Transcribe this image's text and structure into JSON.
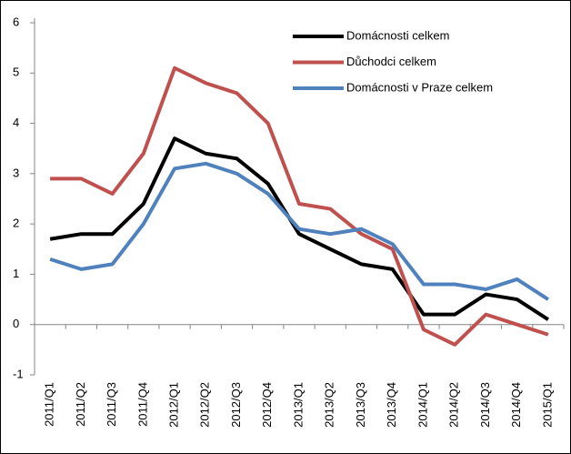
{
  "chart_data": {
    "type": "line",
    "categories": [
      "2011/Q1",
      "2011/Q2",
      "2011/Q3",
      "2011/Q4",
      "2012/Q1",
      "2012/Q2",
      "2012/Q3",
      "2012/Q4",
      "2013/Q1",
      "2013/Q2",
      "2013/Q3",
      "2013/Q4",
      "2014/Q1",
      "2014/Q2",
      "2014/Q3",
      "2014/Q4",
      "2015/Q1"
    ],
    "series": [
      {
        "name": "Domácnosti celkem",
        "color": "#000000",
        "values": [
          1.7,
          1.8,
          1.8,
          2.4,
          3.7,
          3.4,
          3.3,
          2.8,
          1.8,
          1.5,
          1.2,
          1.1,
          0.2,
          0.2,
          0.6,
          0.5,
          0.1
        ]
      },
      {
        "name": "Důchodci celkem",
        "color": "#c0504d",
        "values": [
          2.9,
          2.9,
          2.6,
          3.4,
          5.1,
          4.8,
          4.6,
          4.0,
          2.4,
          2.3,
          1.8,
          1.5,
          -0.1,
          -0.4,
          0.2,
          0.0,
          -0.2
        ]
      },
      {
        "name": "Domácnosti v Praze celkem",
        "color": "#4f81bd",
        "values": [
          1.3,
          1.1,
          1.2,
          2.0,
          3.1,
          3.2,
          3.0,
          2.6,
          1.9,
          1.8,
          1.9,
          1.6,
          0.8,
          0.8,
          0.7,
          0.9,
          0.5
        ]
      }
    ],
    "ylim": [
      -1,
      6
    ],
    "yticks": [
      -1,
      0,
      1,
      2,
      3,
      4,
      5,
      6
    ],
    "legend": "upper-right"
  }
}
